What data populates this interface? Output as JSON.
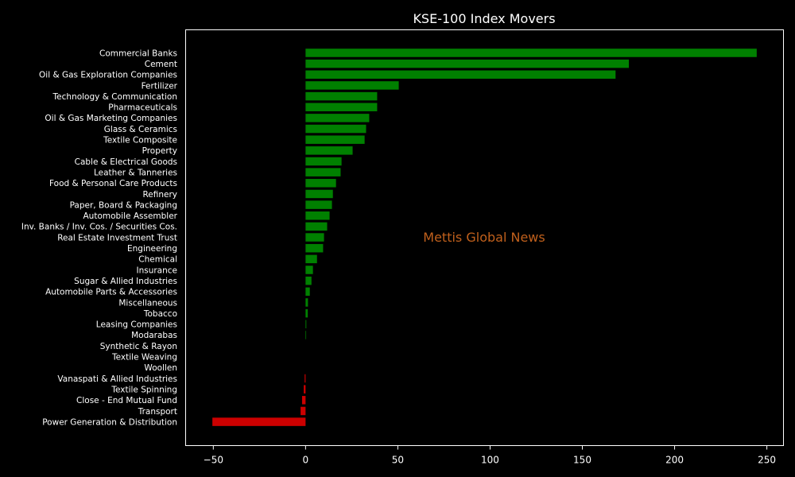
{
  "chart_data": {
    "type": "bar",
    "orientation": "horizontal",
    "title": "KSE-100 Index Movers",
    "xlabel": "",
    "ylabel": "",
    "xlim": [
      -65,
      259
    ],
    "xticks": [
      -50,
      0,
      50,
      100,
      150,
      200,
      250
    ],
    "grid": false,
    "categories": [
      "Commercial Banks",
      "Cement",
      "Oil & Gas Exploration Companies",
      "Fertilizer",
      "Technology & Communication",
      "Pharmaceuticals",
      "Oil & Gas Marketing Companies",
      "Glass & Ceramics",
      "Textile Composite",
      "Property",
      "Cable & Electrical Goods",
      "Leather & Tanneries",
      "Food & Personal Care Products",
      "Refinery",
      "Paper, Board & Packaging",
      "Automobile Assembler",
      "Inv. Banks / Inv. Cos. / Securities Cos.",
      "Real Estate Investment Trust",
      "Engineering",
      "Chemical",
      "Insurance",
      "Sugar & Allied Industries",
      "Automobile Parts & Accessories",
      "Miscellaneous",
      "Tobacco",
      "Leasing Companies",
      "Modarabas",
      "Synthetic & Rayon",
      "Textile Weaving",
      "Woollen",
      "Vanaspati & Allied Industries",
      "Textile Spinning",
      "Close - End Mutual Fund",
      "Transport",
      "Power Generation & Distribution"
    ],
    "values": [
      244.5,
      175.2,
      168.0,
      50.5,
      38.8,
      38.8,
      34.5,
      32.8,
      32.0,
      25.5,
      19.5,
      19.0,
      16.5,
      14.8,
      14.3,
      13.0,
      11.7,
      10.0,
      9.5,
      6.2,
      4.0,
      3.2,
      2.3,
      1.3,
      1.2,
      0.4,
      0.3,
      0.0,
      0.0,
      0.0,
      -0.5,
      -1.0,
      -1.9,
      -2.7,
      -50.5
    ],
    "positive_color": "#008000",
    "negative_color": "#cc0000",
    "background_color": "#000000",
    "text_color": "#ffffff"
  },
  "watermark": {
    "text": "Mettis Global News",
    "color": "#c0601c"
  }
}
